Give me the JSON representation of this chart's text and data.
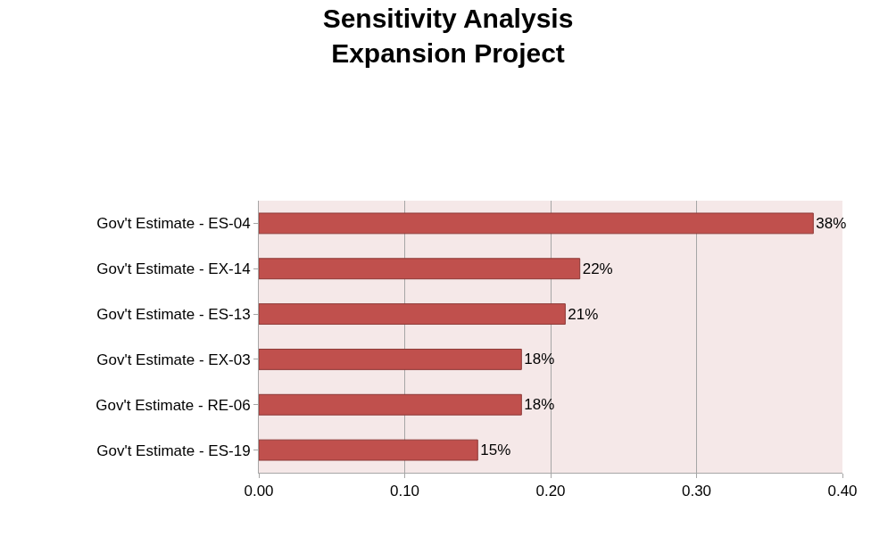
{
  "chart_data": {
    "type": "bar",
    "orientation": "horizontal",
    "title": "Sensitivity Analysis\nExpansion Project",
    "categories": [
      "Gov't Estimate - ES-04",
      "Gov't Estimate - EX-14",
      "Gov't Estimate - ES-13",
      "Gov't Estimate - EX-03",
      "Gov't Estimate - RE-06",
      "Gov't Estimate - ES-19"
    ],
    "values": [
      0.38,
      0.22,
      0.21,
      0.18,
      0.18,
      0.15
    ],
    "value_labels": [
      "38%",
      "22%",
      "21%",
      "18%",
      "18%",
      "15%"
    ],
    "color": "#c0504d",
    "xlim": [
      0,
      0.4
    ],
    "xticks": [
      {
        "value": 0,
        "label": "0.00"
      },
      {
        "value": 0.1,
        "label": "0.10"
      },
      {
        "value": 0.2,
        "label": "0.20"
      },
      {
        "value": 0.3,
        "label": "0.30"
      },
      {
        "value": 0.4,
        "label": "0.40"
      }
    ],
    "grid": "x",
    "legend": false
  }
}
